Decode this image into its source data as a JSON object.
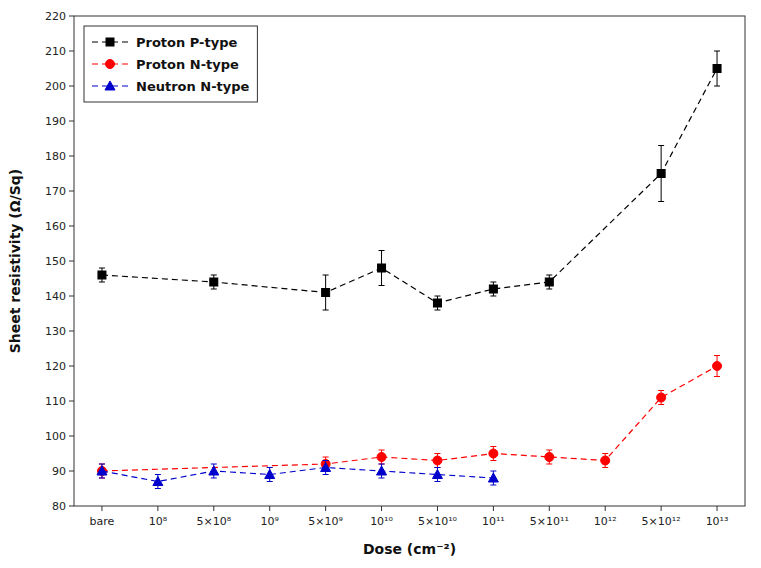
{
  "chart_data": {
    "type": "line",
    "categories": [
      "bare",
      "10⁸",
      "5×10⁸",
      "10⁹",
      "5×10⁹",
      "10¹⁰",
      "5×10¹⁰",
      "10¹¹",
      "5×10¹¹",
      "10¹²",
      "5×10¹²",
      "10¹³"
    ],
    "series": [
      {
        "name": "Proton P-type",
        "color": "#000000",
        "marker": "square",
        "line_style": "dashed",
        "x": [
          "bare",
          "5×10⁸",
          "5×10⁹",
          "10¹⁰",
          "5×10¹⁰",
          "10¹¹",
          "5×10¹¹",
          "5×10¹²",
          "10¹³"
        ],
        "values": [
          146,
          144,
          141,
          148,
          138,
          142,
          144,
          175,
          205
        ],
        "errors": [
          2,
          2,
          5,
          5,
          2,
          2,
          2,
          8,
          5
        ]
      },
      {
        "name": "Proton N-type",
        "color": "#ff0000",
        "marker": "circle",
        "line_style": "dashed",
        "x": [
          "bare",
          "5×10⁹",
          "10¹⁰",
          "5×10¹⁰",
          "10¹¹",
          "5×10¹¹",
          "10¹²",
          "5×10¹²",
          "10¹³"
        ],
        "values": [
          90,
          92,
          94,
          93,
          95,
          94,
          93,
          111,
          120
        ],
        "errors": [
          2,
          2,
          2,
          2,
          2,
          2,
          2,
          2,
          3
        ]
      },
      {
        "name": "Neutron N-type",
        "color": "#0000cc",
        "marker": "triangle",
        "line_style": "dashed",
        "x": [
          "bare",
          "10⁸",
          "5×10⁸",
          "10⁹",
          "5×10⁹",
          "10¹⁰",
          "5×10¹⁰",
          "10¹¹"
        ],
        "values": [
          90,
          87,
          90,
          89,
          91,
          90,
          89,
          88
        ],
        "errors": [
          2,
          2,
          2,
          2,
          2,
          2,
          2,
          2
        ]
      }
    ],
    "x_label": "Dose (cm⁻²)",
    "y_label": "Sheet resistivity (Ω/Sq)",
    "ylim": [
      80,
      220
    ],
    "yticks": [
      80,
      90,
      100,
      110,
      120,
      130,
      140,
      150,
      160,
      170,
      180,
      190,
      200,
      210,
      220
    ],
    "legend": "upper-left",
    "grid": false
  }
}
